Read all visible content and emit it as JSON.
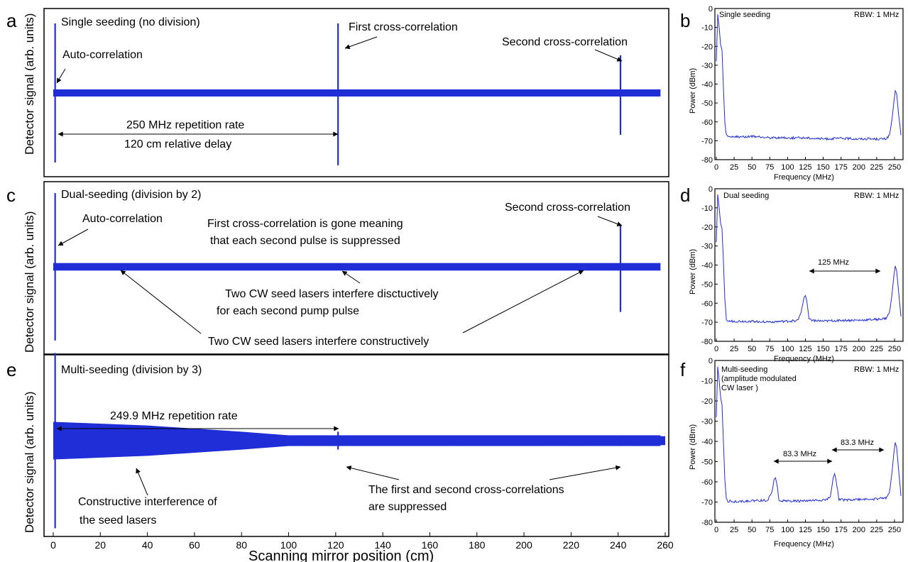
{
  "colors": {
    "trace": "#1f2ed6",
    "axis": "#000000",
    "background": "#ffffff"
  },
  "panel_letters": {
    "a": "a",
    "b": "b",
    "c": "c",
    "d": "d",
    "e": "e",
    "f": "f"
  },
  "scan_axis": {
    "ylabel": "Detector signal (arb. units)",
    "xlabel": "Scanning mirror position (cm)",
    "xlim": [
      -5,
      260
    ],
    "xticks": [
      0,
      20,
      40,
      60,
      80,
      100,
      120,
      140,
      160,
      180,
      200,
      220,
      240,
      260
    ]
  },
  "spectrum_axis": {
    "ylabel": "Power (dBm)",
    "xlabel": "Frequency (MHz)",
    "xlim": [
      0,
      260
    ],
    "ylim": [
      -80,
      0
    ],
    "xticks": [
      0,
      25,
      50,
      75,
      100,
      125,
      150,
      175,
      200,
      225,
      250
    ],
    "yticks": [
      0,
      -10,
      -20,
      -30,
      -40,
      -50,
      -60,
      -70,
      -80
    ],
    "rbw": "RBW: 1 MHz"
  },
  "chart_data": [
    {
      "id": "a",
      "type": "line",
      "title": "Single seeding (no division)",
      "xlim": [
        -5,
        260
      ],
      "baseline_halfwidth": 0.05,
      "peaks": [
        {
          "x": 0.8,
          "top": 0.98,
          "bottom": -0.98
        },
        {
          "x": 121,
          "top": 0.98,
          "bottom": -1.02
        },
        {
          "x": 241,
          "top": 0.53,
          "bottom": -0.59
        }
      ],
      "annotations": [
        {
          "text": "Auto-correlation"
        },
        {
          "text": "First cross-correlation"
        },
        {
          "text": "Second cross-correlation"
        },
        {
          "text": "250 MHz repetition rate"
        },
        {
          "text": "120 cm relative delay"
        }
      ]
    },
    {
      "id": "b",
      "type": "line",
      "title": "Single seeding",
      "xlabel": "Frequency (MHz)",
      "ylabel": "Power (dBm)",
      "xlim": [
        0,
        260
      ],
      "ylim": [
        -80,
        0
      ],
      "x": [
        0,
        2,
        4,
        6,
        8,
        10,
        12,
        14,
        16,
        25,
        50,
        75,
        100,
        125,
        150,
        175,
        200,
        225,
        238,
        243,
        246,
        249,
        251,
        253,
        256,
        259
      ],
      "y": [
        -28,
        -3,
        -10,
        -19,
        -22,
        -42,
        -60,
        -67,
        -68,
        -68,
        -67.8,
        -68.3,
        -68.5,
        -68.4,
        -69,
        -68.7,
        -69,
        -69,
        -69,
        -67,
        -60,
        -50,
        -43.5,
        -45,
        -57,
        -67
      ],
      "annotations": [
        {
          "text": "RBW: 1 MHz"
        }
      ]
    },
    {
      "id": "c",
      "type": "line",
      "title": "Dual-seeding (division by 2)",
      "xlim": [
        -5,
        260
      ],
      "baseline_halfwidth": 0.05,
      "peaks": [
        {
          "x": 0.8,
          "top": 0.98,
          "bottom": -0.98
        },
        {
          "x": 241,
          "top": 0.56,
          "bottom": -0.6
        }
      ],
      "annotations": [
        {
          "text": "Auto-correlation"
        },
        {
          "text": "First cross-correlation is gone meaning"
        },
        {
          "text": "that each second pulse is suppressed"
        },
        {
          "text": "Second cross-correlation"
        },
        {
          "text": "Two CW seed lasers interfere disctuctively"
        },
        {
          "text": "for each second pump pulse"
        },
        {
          "text": "Two CW seed lasers interfere constructively"
        }
      ]
    },
    {
      "id": "d",
      "type": "line",
      "title": "Dual seeding",
      "xlabel": "Frequency (MHz)",
      "ylabel": "Power (dBm)",
      "xlim": [
        0,
        260
      ],
      "ylim": [
        -80,
        0
      ],
      "x": [
        0,
        2,
        4,
        6,
        8,
        10,
        12,
        14,
        16,
        25,
        50,
        75,
        100,
        115,
        120,
        123,
        125,
        127,
        130,
        135,
        150,
        175,
        200,
        225,
        238,
        243,
        246,
        249,
        251,
        253,
        256,
        259
      ],
      "y": [
        -28,
        -3,
        -10,
        -18,
        -21,
        -38,
        -58,
        -68,
        -69.5,
        -69.5,
        -69.5,
        -69.8,
        -69.5,
        -69,
        -63,
        -57,
        -56,
        -59,
        -68,
        -69,
        -69.5,
        -69,
        -69,
        -68.5,
        -68,
        -65,
        -57,
        -46,
        -40.5,
        -43,
        -55,
        -67
      ],
      "annotations": [
        {
          "text": "RBW: 1 MHz"
        },
        {
          "text": "125 MHz"
        }
      ]
    },
    {
      "id": "e",
      "type": "line",
      "title": "Multi-seeding (division by 3)",
      "xlim": [
        -5,
        260
      ],
      "baseline_halfwidth": 0.06,
      "envelope": [
        [
          0,
          0.21
        ],
        [
          40,
          0.17
        ],
        [
          80,
          0.1
        ],
        [
          100,
          0.06
        ],
        [
          260,
          0.05
        ]
      ],
      "peaks": [
        {
          "x": 0.8,
          "top": 0.98,
          "bottom": -0.98
        },
        {
          "x": 121,
          "top": 0.1,
          "bottom": -0.1
        },
        {
          "x": 241,
          "top": 0.06,
          "bottom": -0.06
        }
      ],
      "annotations": [
        {
          "text": "249.9 MHz repetition rate"
        },
        {
          "text": "Constructive interference of"
        },
        {
          "text": "the seed lasers"
        },
        {
          "text": "The first and second cross-correlations"
        },
        {
          "text": "are suppressed"
        }
      ]
    },
    {
      "id": "f",
      "type": "line",
      "title": "Multi-seeding",
      "subtitle_lines": [
        "(amplitude modulated",
        "CW laser )"
      ],
      "xlabel": "Frequency (MHz)",
      "ylabel": "Power (dBm)",
      "xlim": [
        0,
        260
      ],
      "ylim": [
        -80,
        0
      ],
      "x": [
        0,
        2,
        4,
        6,
        8,
        10,
        12,
        14,
        16,
        25,
        50,
        72,
        78,
        81,
        83,
        85,
        88,
        95,
        125,
        155,
        160,
        164,
        166,
        168,
        172,
        180,
        225,
        238,
        243,
        246,
        249,
        251,
        253,
        256,
        259
      ],
      "y": [
        -28,
        -3,
        -10,
        -18,
        -22,
        -40,
        -59,
        -68,
        -69.5,
        -69.8,
        -69.5,
        -69,
        -65,
        -59,
        -58,
        -61,
        -69,
        -69.5,
        -69.5,
        -69,
        -67,
        -58,
        -56,
        -59,
        -68.5,
        -69,
        -68.5,
        -68,
        -65,
        -57,
        -46,
        -40.5,
        -43,
        -55,
        -67
      ],
      "annotations": [
        {
          "text": "RBW: 1 MHz"
        },
        {
          "text": "83.3 MHz"
        },
        {
          "text": "83.3 MHz"
        }
      ]
    }
  ]
}
